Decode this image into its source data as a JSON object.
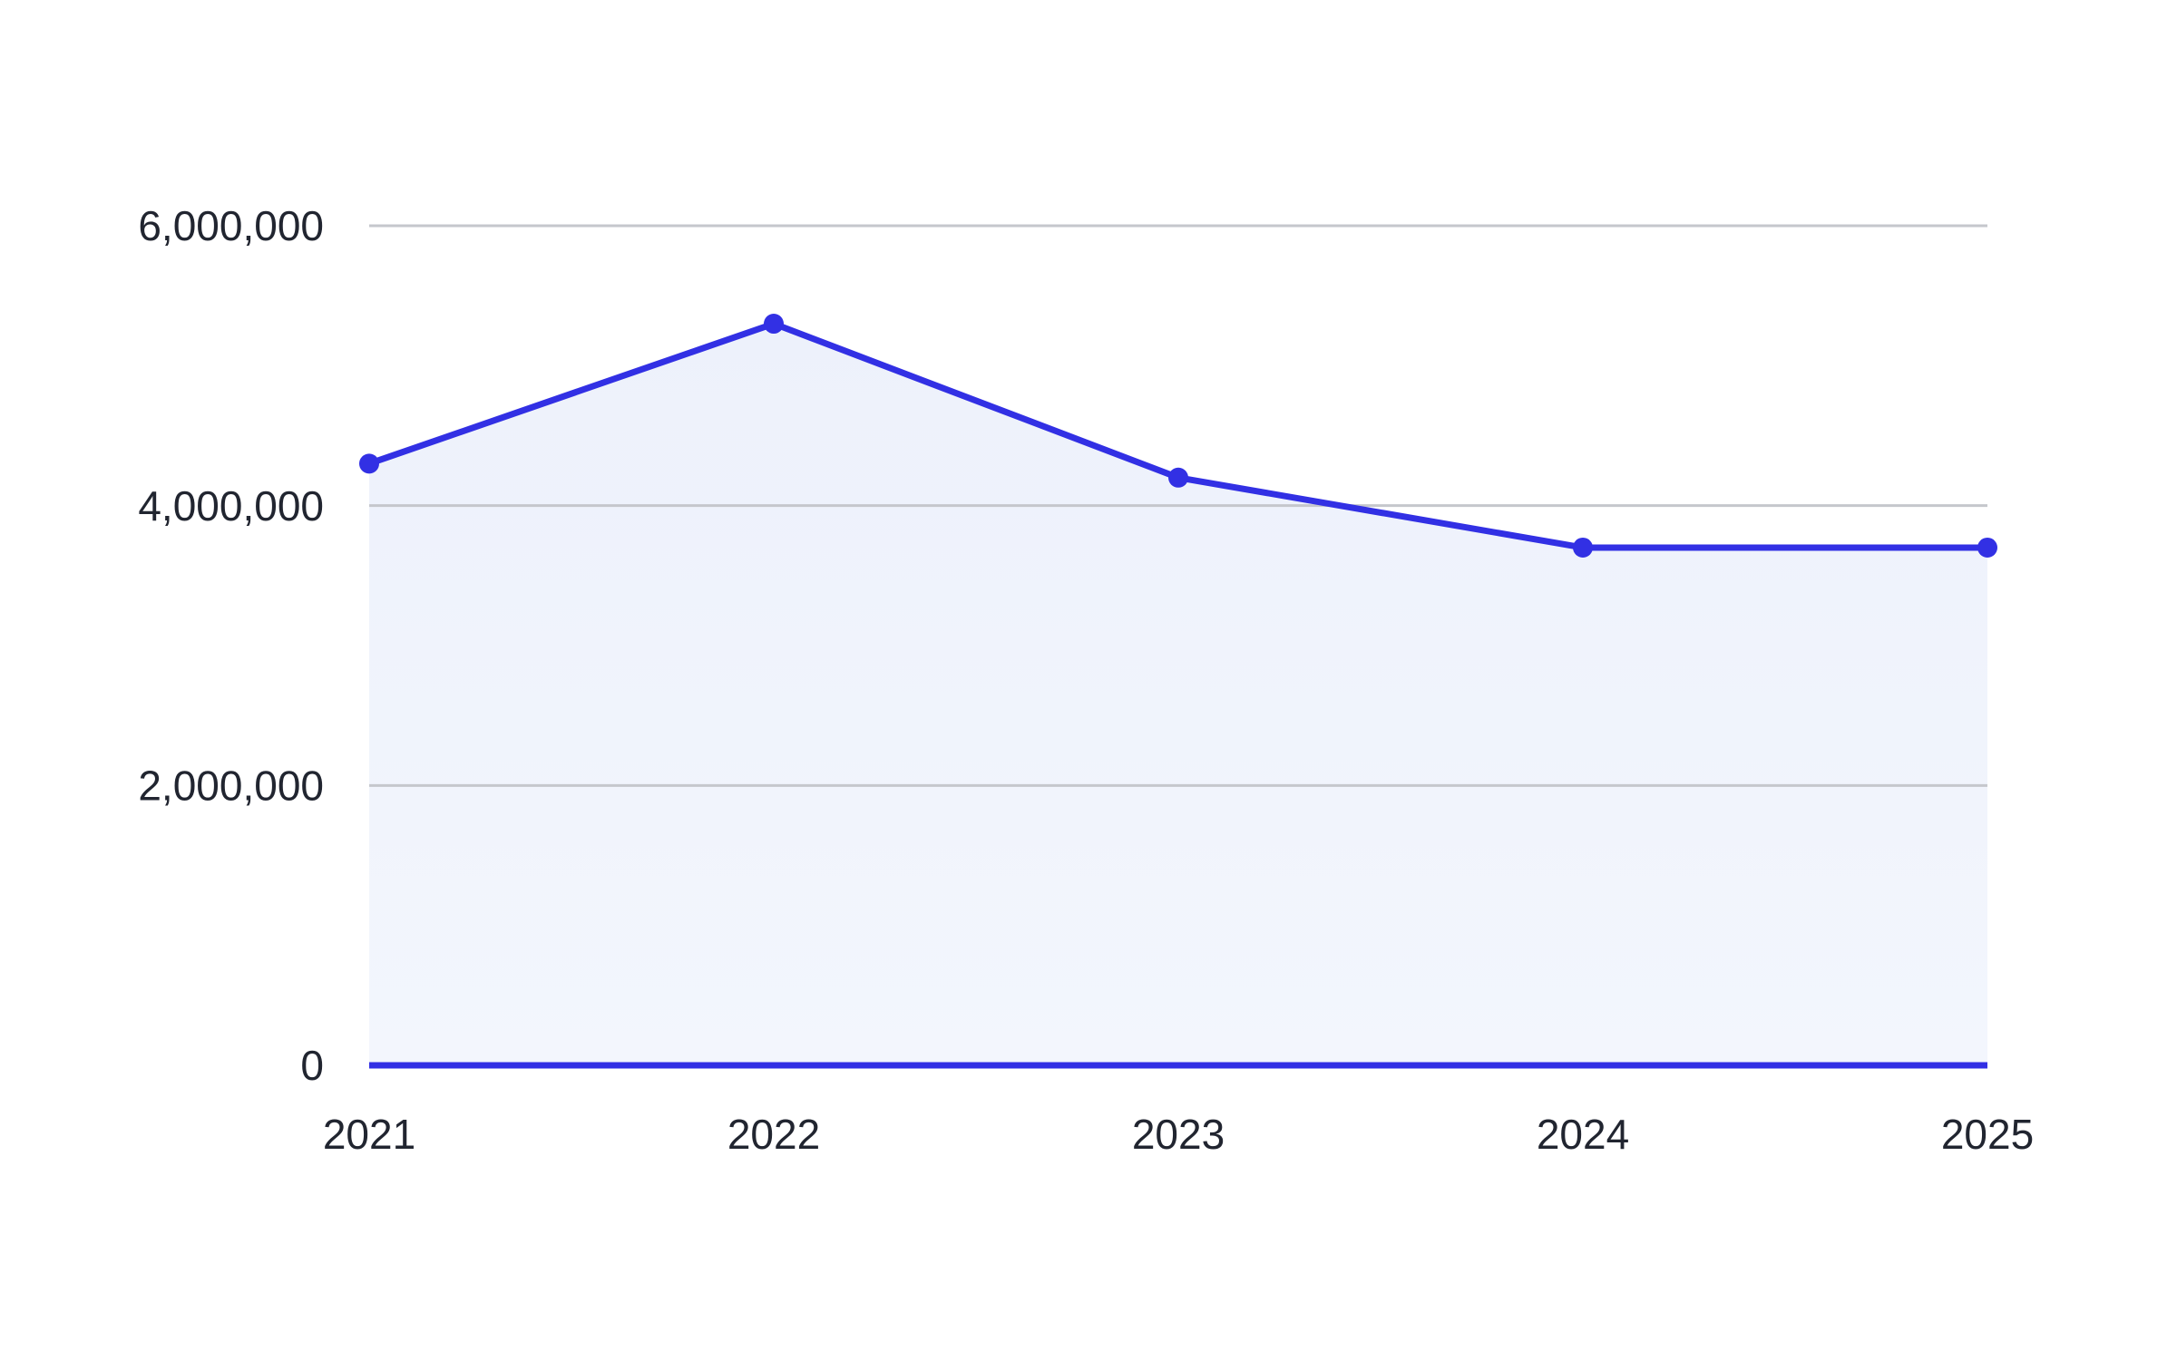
{
  "chart_data": {
    "type": "area",
    "title": "",
    "xlabel": "",
    "ylabel": "",
    "categories": [
      "2021",
      "2022",
      "2023",
      "2024",
      "2025"
    ],
    "values": [
      4300000,
      5300000,
      4200000,
      3700000,
      3700000
    ],
    "ylim": [
      0,
      6000000
    ],
    "yticks": [
      0,
      2000000,
      4000000,
      6000000
    ],
    "ytick_labels": [
      "0",
      "2,000,000",
      "4,000,000",
      "6,000,000"
    ],
    "grid": true,
    "legend": false,
    "markers": true
  },
  "style": {
    "line_color": "#3230E4",
    "point_color": "#3230E4",
    "baseline_color": "#3230E4",
    "area_fill_top": "#EDF1FB",
    "area_fill_bottom": "#F3F6FD",
    "gridline_color": "#C5C7CC",
    "label_color": "#212530",
    "background_color": "#FFFFFF"
  }
}
